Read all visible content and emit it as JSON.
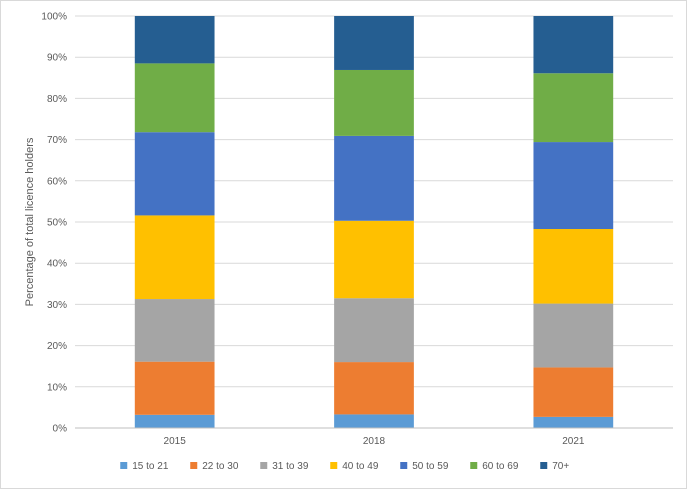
{
  "chart_data": {
    "type": "bar",
    "stacked": true,
    "categories": [
      "2015",
      "2018",
      "2021"
    ],
    "ylabel": "Percentage of total licence holders",
    "xlabel": "",
    "title": "",
    "ylim": [
      0,
      100
    ],
    "ytick_step": 10,
    "ytick_labels": [
      "0%",
      "10%",
      "20%",
      "30%",
      "40%",
      "50%",
      "60%",
      "70%",
      "80%",
      "90%",
      "100%"
    ],
    "grid": true,
    "legend_position": "bottom",
    "series": [
      {
        "name": "15 to 21",
        "color": "#5B9BD5",
        "values": [
          3.2,
          3.3,
          2.7
        ]
      },
      {
        "name": "22 to 30",
        "color": "#ED7D31",
        "values": [
          12.9,
          12.7,
          12.0
        ]
      },
      {
        "name": "31 to 39",
        "color": "#A5A5A5",
        "values": [
          15.2,
          15.5,
          15.5
        ]
      },
      {
        "name": "40 to 49",
        "color": "#FFC000",
        "values": [
          20.3,
          18.8,
          18.1
        ]
      },
      {
        "name": "50 to 59",
        "color": "#4472C4",
        "values": [
          20.2,
          20.6,
          21.1
        ]
      },
      {
        "name": "60 to 69",
        "color": "#70AD47",
        "values": [
          16.7,
          16.0,
          16.7
        ]
      },
      {
        "name": "70+",
        "color": "#255E91",
        "values": [
          11.5,
          13.1,
          13.9
        ]
      }
    ]
  }
}
